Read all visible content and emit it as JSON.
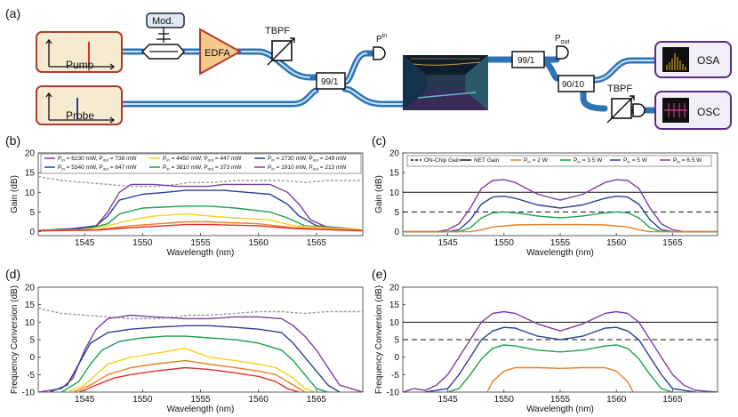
{
  "panels": {
    "a": {
      "label": "(a)",
      "pump": "Pump",
      "probe": "Probe",
      "mod": "Mod.",
      "edfa": "EDFA",
      "tbpf1": "TBPF",
      "tbpf2": "TBPF",
      "split1": "99/1",
      "split2": "99/1",
      "split3": "90/10",
      "pin": "P",
      "pin_sub": "in",
      "pout": "P",
      "pout_sub": "out",
      "osa": "OSA",
      "osc": "OSC",
      "colors": {
        "box_border": "#b03a2e",
        "box_fill": "#f6ead0",
        "fiber": "#2e75b6",
        "edfa_fill": "#f4c98a",
        "instr_border": "#5b2c83"
      }
    },
    "b": {
      "label": "(b)"
    },
    "c": {
      "label": "(c)"
    },
    "d": {
      "label": "(d)"
    },
    "e": {
      "label": "(e)"
    }
  },
  "chart_data": [
    {
      "panel": "b",
      "type": "line",
      "xlabel": "Wavelength (nm)",
      "ylabel": "Gain (dB)",
      "xlim": [
        1541,
        1569
      ],
      "ylim": [
        -1,
        20
      ],
      "xticks": [
        1545,
        1550,
        1555,
        1560,
        1565
      ],
      "yticks": [
        0,
        5,
        10,
        15,
        20
      ],
      "grid": false,
      "legend_position": "top",
      "legend": [
        {
          "pre": "P",
          "sub1": "in",
          "mid": " = 6230 mW, P",
          "sub2": "out",
          "post": " = 738 mW",
          "color": "#7b3fa0"
        },
        {
          "pre": "P",
          "sub1": "in",
          "mid": " = 4450 mW, P",
          "sub2": "out",
          "post": " = 447 mW",
          "color": "#f2d21b"
        },
        {
          "pre": "P",
          "sub1": "in",
          "mid": " = 2730 mW, P",
          "sub2": "out",
          "post": " = 249 mW",
          "color": "#2a3f9a"
        },
        {
          "pre": "P",
          "sub1": "in",
          "mid": " = 5340 mW, P",
          "sub2": "out",
          "post": " = 647 mW",
          "color": "#2a3f9a"
        },
        {
          "pre": "P",
          "sub1": "in",
          "mid": " = 3810 mW, P",
          "sub2": "out",
          "post": " = 373 mW",
          "color": "#1aa34a"
        },
        {
          "pre": "P",
          "sub1": "in",
          "mid": " = 1910 mW, P",
          "sub2": "out",
          "post": " = 213 mW",
          "color": "#7b3fa0"
        }
      ],
      "series": [
        {
          "color": "#999999",
          "dashed": true,
          "x": [
            1541,
            1543,
            1545,
            1547,
            1549,
            1551,
            1553,
            1554,
            1555,
            1556,
            1558,
            1560,
            1562,
            1564,
            1566,
            1569
          ],
          "y": [
            14,
            13,
            12.5,
            12,
            11.5,
            11.5,
            12,
            12.5,
            12.5,
            12.5,
            13,
            13,
            13,
            12.5,
            13,
            13
          ]
        },
        {
          "color": "#7b3fa0",
          "x": [
            1541,
            1544,
            1546,
            1547,
            1548,
            1549,
            1551,
            1553,
            1553.7,
            1555.7,
            1557,
            1559,
            1561,
            1562.5,
            1563.5,
            1564.5,
            1566,
            1569
          ],
          "y": [
            0.3,
            0.8,
            1.5,
            5,
            10,
            12,
            12,
            11.5,
            11.5,
            11.5,
            12,
            12,
            12,
            10,
            7,
            3,
            1,
            0.5
          ]
        },
        {
          "color": "#2a3f9a",
          "x": [
            1541,
            1544,
            1546,
            1547,
            1548,
            1550,
            1552,
            1553.7,
            1555.7,
            1557,
            1559,
            1561,
            1562.5,
            1563.5,
            1565,
            1569
          ],
          "y": [
            0.3,
            0.6,
            1.5,
            4,
            8,
            9.5,
            10,
            10.5,
            10.5,
            10.5,
            10,
            9.5,
            7,
            4,
            1.5,
            0.5
          ]
        },
        {
          "color": "#1aa34a",
          "x": [
            1541,
            1545,
            1547,
            1548,
            1550,
            1553.7,
            1555.7,
            1558,
            1561,
            1562.5,
            1564,
            1569
          ],
          "y": [
            0.3,
            0.6,
            2,
            4.5,
            6,
            6.5,
            6.5,
            6,
            5,
            3.5,
            1.5,
            0.5
          ]
        },
        {
          "color": "#f2d21b",
          "x": [
            1541,
            1545,
            1547,
            1549,
            1551,
            1553.7,
            1555.7,
            1558,
            1561,
            1563,
            1569
          ],
          "y": [
            0.3,
            0.5,
            1.5,
            3,
            4,
            4.5,
            4,
            3.5,
            3,
            1.5,
            0.5
          ]
        },
        {
          "color": "#ef7d22",
          "x": [
            1541,
            1546,
            1549,
            1553.7,
            1555.7,
            1560,
            1563,
            1569
          ],
          "y": [
            0.3,
            0.5,
            1.5,
            2.5,
            2.5,
            2,
            1,
            0.3
          ]
        },
        {
          "color": "#e03030",
          "x": [
            1541,
            1546,
            1549,
            1553.7,
            1555.7,
            1560,
            1563,
            1569
          ],
          "y": [
            0.2,
            0.4,
            1,
            1.8,
            1.8,
            1.5,
            0.8,
            0.2
          ]
        }
      ]
    },
    {
      "panel": "c",
      "type": "line",
      "xlabel": "Wavelength (nm)",
      "ylabel": "Gain (dB)",
      "xlim": [
        1541,
        1569
      ],
      "ylim": [
        -1,
        20
      ],
      "xticks": [
        1545,
        1550,
        1555,
        1560,
        1565
      ],
      "yticks": [
        0,
        5,
        10,
        15,
        20
      ],
      "grid": false,
      "legend_position": "top",
      "legend": [
        {
          "pre": "ON-Chip Gain",
          "sub1": "",
          "mid": "",
          "sub2": "",
          "post": "",
          "color": "#111111",
          "dashed": true
        },
        {
          "pre": "NET Gain",
          "sub1": "",
          "mid": "",
          "sub2": "",
          "post": "",
          "color": "#111111"
        },
        {
          "pre": "P",
          "sub1": "in",
          "mid": " = 2 W",
          "sub2": "",
          "post": "",
          "color": "#ef7d22"
        },
        {
          "pre": "P",
          "sub1": "in",
          "mid": " = 3.5 W",
          "sub2": "",
          "post": "",
          "color": "#1aa34a"
        },
        {
          "pre": "P",
          "sub1": "in",
          "mid": " = 5 W",
          "sub2": "",
          "post": "",
          "color": "#2a3f9a"
        },
        {
          "pre": "P",
          "sub1": "in",
          "mid": " = 6.5 W",
          "sub2": "",
          "post": "",
          "color": "#7b3fa0"
        }
      ],
      "hlines": [
        {
          "y": 10,
          "dashed": false
        },
        {
          "y": 5,
          "dashed": true
        }
      ],
      "series": [
        {
          "color": "#7b3fa0",
          "x": [
            1541,
            1544,
            1545,
            1546,
            1547,
            1548,
            1549,
            1550,
            1551,
            1553,
            1555,
            1557,
            1559,
            1560,
            1561,
            1562,
            1563,
            1564,
            1565,
            1566,
            1569
          ],
          "y": [
            0,
            0,
            0.5,
            2,
            6,
            11,
            13,
            13.2,
            12.5,
            9.5,
            8,
            9.5,
            12.5,
            13.2,
            13,
            11,
            6,
            2,
            0.5,
            0,
            0
          ]
        },
        {
          "color": "#2a3f9a",
          "x": [
            1541,
            1545,
            1546,
            1547,
            1548,
            1549,
            1550,
            1551,
            1553,
            1555,
            1557,
            1559,
            1560,
            1561,
            1562,
            1563,
            1564,
            1565,
            1569
          ],
          "y": [
            0,
            0,
            0.5,
            3,
            7,
            8.8,
            9,
            8.5,
            6.8,
            6,
            6.8,
            8.5,
            9,
            8.8,
            7,
            3,
            0.5,
            0,
            0
          ]
        },
        {
          "color": "#1aa34a",
          "x": [
            1541,
            1546,
            1547,
            1548,
            1549,
            1550,
            1551,
            1553,
            1555,
            1557,
            1559,
            1560,
            1561,
            1562,
            1563,
            1564,
            1569
          ],
          "y": [
            0,
            0,
            1,
            3.5,
            4.8,
            5,
            4.8,
            4,
            3.5,
            4,
            4.8,
            5,
            4.8,
            3.5,
            1,
            0,
            0
          ]
        },
        {
          "color": "#ef7d22",
          "x": [
            1541,
            1547,
            1548,
            1549,
            1551,
            1553,
            1555,
            1557,
            1559,
            1561,
            1562,
            1563,
            1569
          ],
          "y": [
            0,
            0,
            0.5,
            1.2,
            1.7,
            1.8,
            1.8,
            1.8,
            1.7,
            1.2,
            0.5,
            0,
            0
          ]
        }
      ]
    },
    {
      "panel": "d",
      "type": "line",
      "xlabel": "Wavelength (nm)",
      "ylabel": "Frequency Conversion (dB)",
      "xlim": [
        1541,
        1569
      ],
      "ylim": [
        -10,
        20
      ],
      "xticks": [
        1545,
        1550,
        1555,
        1560,
        1565
      ],
      "yticks": [
        -10,
        -5,
        0,
        5,
        10,
        15,
        20
      ],
      "grid": false,
      "series": [
        {
          "color": "#999999",
          "dashed": true,
          "x": [
            1541,
            1543,
            1545,
            1547,
            1549,
            1551,
            1553,
            1554,
            1555.7,
            1558,
            1560,
            1562,
            1564,
            1566,
            1569
          ],
          "y": [
            14,
            12.5,
            12,
            11.5,
            11,
            11,
            11.5,
            12,
            12,
            12.5,
            13,
            13,
            12.5,
            13,
            13
          ]
        },
        {
          "color": "#7b3fa0",
          "x": [
            1541,
            1543,
            1544,
            1545,
            1546,
            1547,
            1549,
            1551,
            1553.7,
            1555.7,
            1558,
            1560,
            1562,
            1563,
            1564,
            1565,
            1566,
            1567,
            1569
          ],
          "y": [
            -10,
            -9,
            -6,
            2,
            8,
            11,
            12,
            11.5,
            11,
            11,
            11.5,
            11.5,
            11,
            9,
            6,
            2,
            -3,
            -8,
            -10
          ]
        },
        {
          "color": "#2a3f9a",
          "x": [
            1542,
            1543.5,
            1544.5,
            1545.5,
            1547,
            1549,
            1551,
            1553.7,
            1555.7,
            1558,
            1560,
            1562,
            1563,
            1564,
            1565,
            1566,
            1567
          ],
          "y": [
            -10,
            -8,
            -2,
            4,
            7,
            8,
            8.5,
            9,
            9,
            8.5,
            8,
            7,
            4,
            0,
            -4,
            -8,
            -10
          ]
        },
        {
          "color": "#1aa34a",
          "x": [
            1543,
            1544.5,
            1545.5,
            1546.5,
            1548,
            1550,
            1552,
            1553.7,
            1555.7,
            1558,
            1560,
            1562,
            1563,
            1564,
            1565,
            1566
          ],
          "y": [
            -10,
            -7,
            -2,
            2,
            4.5,
            5.5,
            6,
            6,
            5.5,
            5,
            4,
            2,
            -1,
            -5,
            -9,
            -10
          ]
        },
        {
          "color": "#f2d21b",
          "x": [
            1543.5,
            1545,
            1546,
            1547,
            1549,
            1551,
            1553.7,
            1555.7,
            1558,
            1560,
            1561.5,
            1563,
            1564,
            1565
          ],
          "y": [
            -10,
            -8,
            -5,
            -2,
            0,
            1,
            2.5,
            0,
            -1,
            -2,
            -3,
            -6,
            -9,
            -10
          ]
        },
        {
          "color": "#ef7d22",
          "x": [
            1544,
            1545.5,
            1547,
            1549,
            1551,
            1553.7,
            1555.7,
            1558,
            1560,
            1561.5,
            1563,
            1564
          ],
          "y": [
            -10,
            -8,
            -5,
            -3,
            -2,
            -1,
            -2,
            -3,
            -4,
            -5,
            -8,
            -10
          ]
        },
        {
          "color": "#e03030",
          "x": [
            1544.5,
            1546,
            1547.5,
            1549,
            1551,
            1553.7,
            1555.7,
            1558,
            1560,
            1561.5,
            1562.5,
            1563.5
          ],
          "y": [
            -10,
            -8,
            -6,
            -5,
            -4,
            -3,
            -3.5,
            -4.5,
            -5.5,
            -7,
            -9,
            -10
          ]
        }
      ]
    },
    {
      "panel": "e",
      "type": "line",
      "xlabel": "Wavelength (nm)",
      "ylabel": "Frequency Conversion (dB)",
      "xlim": [
        1541,
        1569
      ],
      "ylim": [
        -10,
        20
      ],
      "xticks": [
        1545,
        1550,
        1555,
        1560,
        1565
      ],
      "yticks": [
        -10,
        -5,
        0,
        5,
        10,
        15,
        20
      ],
      "grid": false,
      "hlines": [
        {
          "y": 10,
          "dashed": false
        },
        {
          "y": 5,
          "dashed": true
        }
      ],
      "series": [
        {
          "color": "#7b3fa0",
          "x": [
            1541,
            1542,
            1543,
            1544,
            1545,
            1546,
            1547,
            1548,
            1549,
            1550,
            1551,
            1553,
            1555,
            1557,
            1559,
            1560,
            1561,
            1562,
            1563,
            1564,
            1565,
            1566,
            1567,
            1569
          ],
          "y": [
            -10,
            -9,
            -9.5,
            -8,
            -5,
            0,
            5,
            10,
            12.5,
            13,
            12.5,
            9.5,
            7.5,
            9.5,
            12.5,
            13,
            12.5,
            10,
            5,
            0,
            -5,
            -8,
            -9.5,
            -10
          ]
        },
        {
          "color": "#2a3f9a",
          "x": [
            1543,
            1545,
            1546,
            1547,
            1548,
            1549,
            1550,
            1551,
            1553,
            1555,
            1557,
            1559,
            1560,
            1561,
            1562,
            1563,
            1564,
            1565,
            1567
          ],
          "y": [
            -10,
            -9,
            -5,
            0,
            5,
            7.5,
            8.5,
            8.3,
            6,
            5,
            6,
            8.3,
            8.5,
            7.5,
            5,
            0,
            -5,
            -9,
            -10
          ]
        },
        {
          "color": "#1aa34a",
          "x": [
            1545,
            1546,
            1547,
            1548,
            1549,
            1550,
            1551,
            1553,
            1555,
            1557,
            1559,
            1560,
            1561,
            1562,
            1563,
            1564,
            1565
          ],
          "y": [
            -10,
            -9,
            -5,
            -0.5,
            2.5,
            3.5,
            3.2,
            2,
            1.5,
            2,
            3.2,
            3.5,
            2.5,
            -0.5,
            -5,
            -9,
            -10
          ]
        },
        {
          "color": "#ef7d22",
          "x": [
            1548.5,
            1549,
            1550,
            1551,
            1553,
            1555,
            1557,
            1559,
            1560,
            1561,
            1561.5
          ],
          "y": [
            -10,
            -7,
            -4,
            -3,
            -3,
            -3.2,
            -3,
            -3,
            -4,
            -7,
            -10
          ]
        }
      ]
    }
  ]
}
